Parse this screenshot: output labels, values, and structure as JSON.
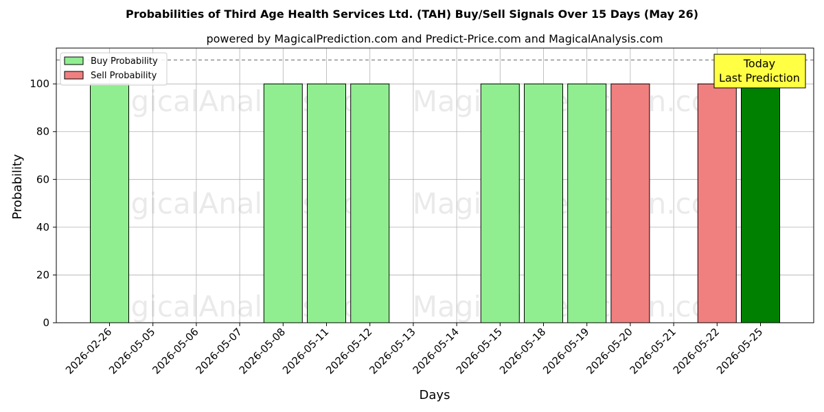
{
  "chart_data": {
    "type": "bar",
    "title": "Probabilities of Third Age Health Services Ltd. (TAH) Buy/Sell Signals Over 15 Days (May 26)",
    "subtitle": "powered by MagicalPrediction.com and Predict-Price.com and MagicalAnalysis.com",
    "xlabel": "Days",
    "ylabel": "Probability",
    "ylim": [
      0,
      115
    ],
    "yticks": [
      0,
      20,
      40,
      60,
      80,
      100
    ],
    "reference_line": 110,
    "grid": true,
    "legend_position": "top-left",
    "categories": [
      "2026-02-26",
      "2026-05-05",
      "2026-05-06",
      "2026-05-07",
      "2026-05-08",
      "2026-05-11",
      "2026-05-12",
      "2026-05-13",
      "2026-05-14",
      "2026-05-15",
      "2026-05-18",
      "2026-05-19",
      "2026-05-20",
      "2026-05-21",
      "2026-05-22",
      "2026-05-25"
    ],
    "series": [
      {
        "name": "Buy Probability",
        "color": "#90ee90",
        "values": [
          100,
          0,
          0,
          0,
          100,
          100,
          100,
          0,
          0,
          100,
          100,
          100,
          0,
          0,
          0,
          100
        ]
      },
      {
        "name": "Sell Probability",
        "color": "#f08080",
        "values": [
          0,
          0,
          0,
          0,
          0,
          0,
          0,
          0,
          0,
          0,
          0,
          0,
          100,
          0,
          100,
          0
        ]
      }
    ],
    "highlight": {
      "category": "2026-05-25",
      "color": "#008000",
      "label_lines": [
        "Today",
        "Last Prediction"
      ],
      "box_color": "#ffff44"
    },
    "watermarks": [
      "MagicalAnalysis.com",
      "MagicalPrediction.com"
    ]
  }
}
